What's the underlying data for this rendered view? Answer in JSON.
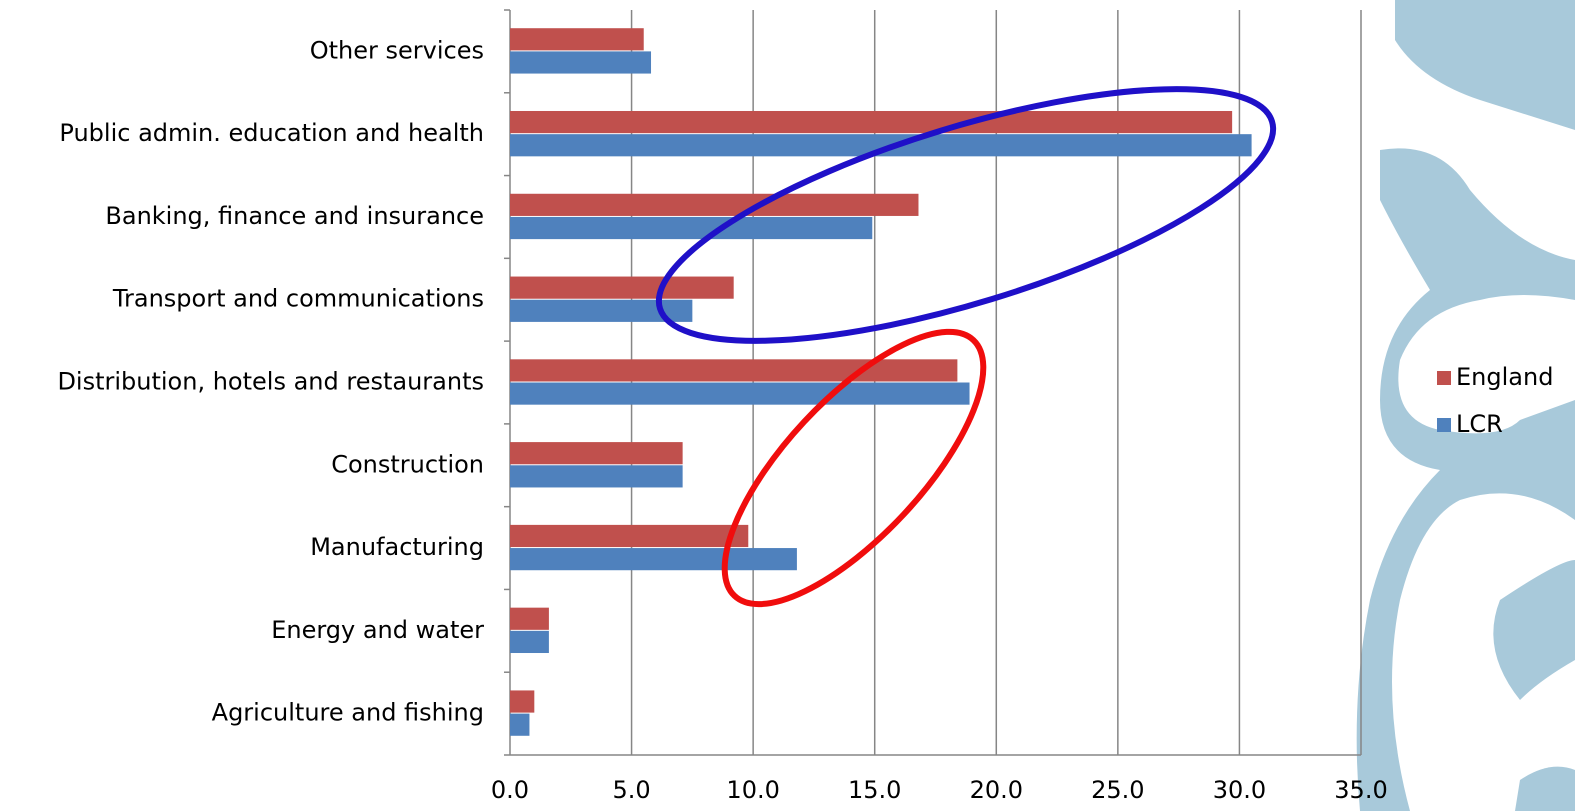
{
  "chart_data": {
    "type": "hbar",
    "categories": [
      "Other services",
      "Public admin. education and health",
      "Banking, finance and insurance",
      "Transport and communications",
      "Distribution, hotels and restaurants",
      "Construction",
      "Manufacturing",
      "Energy and water",
      "Agriculture and fishing"
    ],
    "series": [
      {
        "name": "England",
        "color": "#c0504d",
        "values": [
          5.5,
          29.7,
          16.8,
          9.2,
          18.4,
          7.1,
          9.8,
          1.6,
          1.0
        ]
      },
      {
        "name": "LCR",
        "color": "#4f81bd",
        "values": [
          5.8,
          30.5,
          14.9,
          7.5,
          18.9,
          7.1,
          11.8,
          1.6,
          0.8
        ]
      }
    ],
    "xlim": [
      0,
      35
    ],
    "xticks": [
      {
        "value": 0,
        "label": "0.0"
      },
      {
        "value": 5,
        "label": "5.0"
      },
      {
        "value": 10,
        "label": "10.0"
      },
      {
        "value": 15,
        "label": "15.0"
      },
      {
        "value": 20,
        "label": "20.0"
      },
      {
        "value": 25,
        "label": "25.0"
      },
      {
        "value": 30,
        "label": "30.0"
      },
      {
        "value": 35,
        "label": "35.0"
      }
    ],
    "grid": true,
    "legend": "right"
  }
}
